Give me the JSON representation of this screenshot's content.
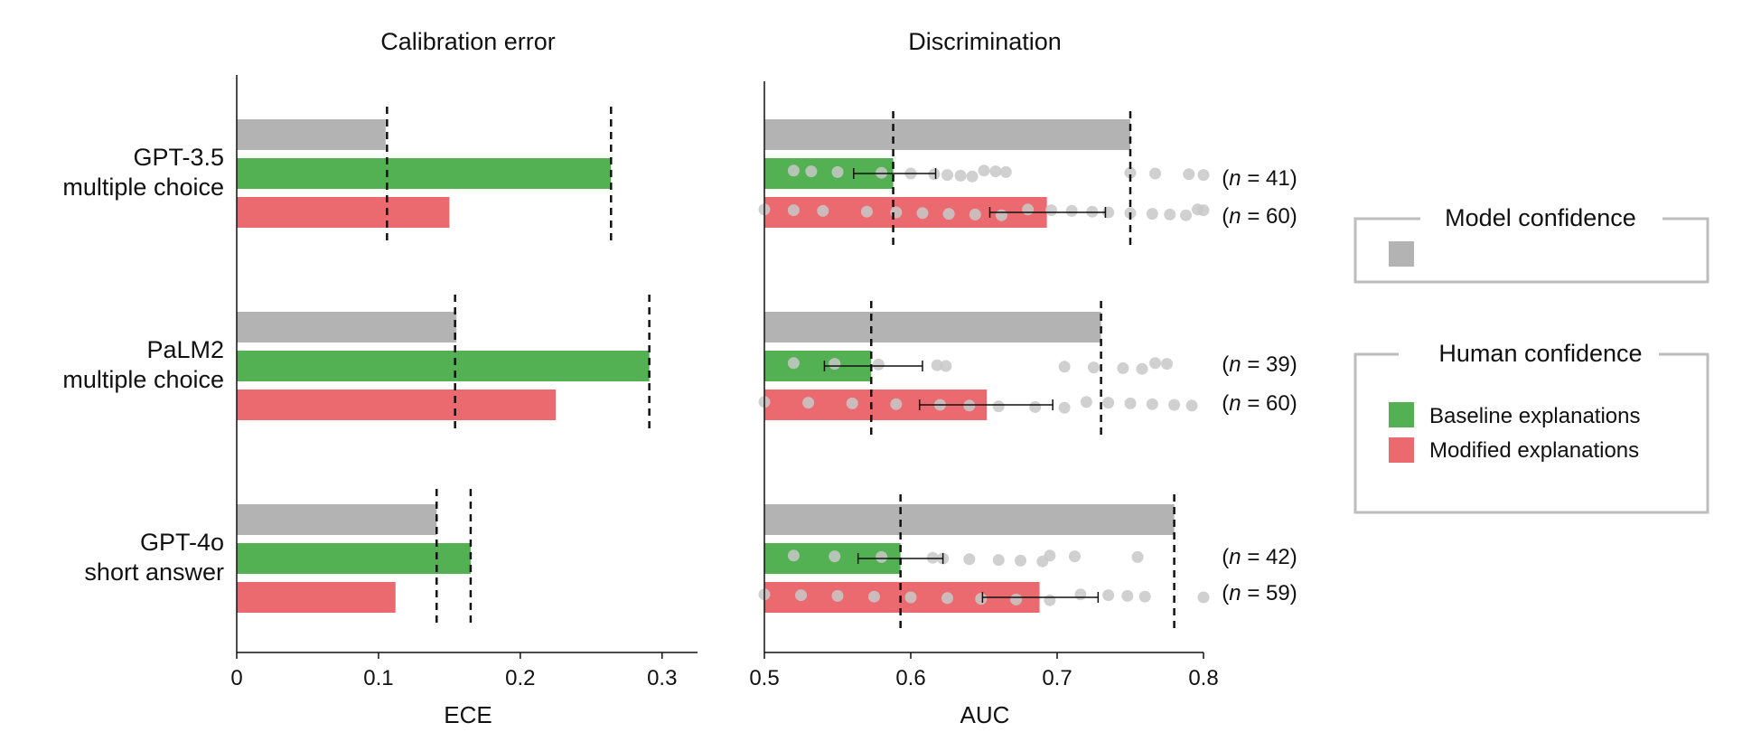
{
  "chart_data": [
    {
      "type": "bar",
      "title": "Calibration error",
      "xlabel": "ECE",
      "xlim": [
        0,
        0.325
      ],
      "xticks": [
        0,
        0.1,
        0.2,
        0.3
      ],
      "xtick_labels": [
        "0",
        "0.1",
        "0.2",
        "0.3"
      ],
      "categories": [
        "GPT-3.5\nmultiple choice",
        "PaLM2\nmultiple choice",
        "GPT-4o\nshort answer"
      ],
      "series": [
        {
          "name": "Model confidence",
          "values": [
            0.105,
            0.155,
            0.141
          ]
        },
        {
          "name": "Baseline explanations",
          "values": [
            0.264,
            0.291,
            0.165
          ]
        },
        {
          "name": "Modified explanations",
          "values": [
            0.15,
            0.225,
            0.112
          ]
        }
      ],
      "reference_lines": [
        [
          0.106,
          0.264
        ],
        [
          0.154,
          0.291
        ],
        [
          0.141,
          0.165
        ]
      ],
      "grid": false
    },
    {
      "type": "bar",
      "title": "Discrimination",
      "xlabel": "AUC",
      "xlim": [
        0.5,
        0.8
      ],
      "xticks": [
        0.5,
        0.6,
        0.7,
        0.8
      ],
      "xtick_labels": [
        "0.5",
        "0.6",
        "0.7",
        "0.8"
      ],
      "categories": [
        "GPT-3.5\nmultiple choice",
        "PaLM2\nmultiple choice",
        "GPT-4o\nshort answer"
      ],
      "series": [
        {
          "name": "Model confidence",
          "values": [
            0.75,
            0.73,
            0.78
          ]
        },
        {
          "name": "Baseline explanations",
          "values": [
            0.588,
            0.573,
            0.593
          ],
          "error": [
            [
              0.561,
              0.617
            ],
            [
              0.541,
              0.608
            ],
            [
              0.564,
              0.622
            ]
          ]
        },
        {
          "name": "Modified explanations",
          "values": [
            0.693,
            0.652,
            0.688
          ],
          "error": [
            [
              0.654,
              0.733
            ],
            [
              0.606,
              0.697
            ],
            [
              0.649,
              0.728
            ]
          ]
        }
      ],
      "reference_lines": [
        [
          0.588,
          0.75
        ],
        [
          0.573,
          0.73
        ],
        [
          0.593,
          0.78
        ]
      ],
      "individual_points": [
        [
          0.52,
          0.532,
          0.55,
          0.58,
          0.6,
          0.616,
          0.625,
          0.634,
          0.642,
          0.65,
          0.658,
          0.665,
          0.75,
          0.767,
          0.79,
          0.8
        ],
        [
          0.5,
          0.52,
          0.54,
          0.57,
          0.59,
          0.608,
          0.626,
          0.644,
          0.662,
          0.68,
          0.696,
          0.71,
          0.724,
          0.735,
          0.75,
          0.765,
          0.777,
          0.788,
          0.796,
          0.8
        ],
        [
          0.52,
          0.548,
          0.578,
          0.618,
          0.624,
          0.705,
          0.725,
          0.745,
          0.758,
          0.767,
          0.775
        ],
        [
          0.5,
          0.53,
          0.56,
          0.59,
          0.62,
          0.64,
          0.66,
          0.685,
          0.705,
          0.72,
          0.735,
          0.75,
          0.765,
          0.78,
          0.792
        ],
        [
          0.52,
          0.548,
          0.58,
          0.615,
          0.622,
          0.64,
          0.66,
          0.675,
          0.69,
          0.695,
          0.712,
          0.755
        ],
        [
          0.5,
          0.525,
          0.55,
          0.575,
          0.6,
          0.625,
          0.648,
          0.672,
          0.695,
          0.716,
          0.735,
          0.748,
          0.76,
          0.8
        ]
      ],
      "n_labels": [
        "(n = 41)",
        "(n = 60)",
        "(n = 39)",
        "(n = 60)",
        "(n = 42)",
        "(n = 59)"
      ],
      "grid": false
    }
  ],
  "legend": {
    "model_title": "Model confidence",
    "human_title": "Human confidence",
    "items": [
      {
        "label": "Baseline explanations"
      },
      {
        "label": "Modified explanations"
      }
    ]
  },
  "colors": {
    "model": "#b3b3b3",
    "baseline": "#53b153",
    "modified": "#eb6a70",
    "points": "#c8c8c8",
    "axis": "#111111"
  }
}
